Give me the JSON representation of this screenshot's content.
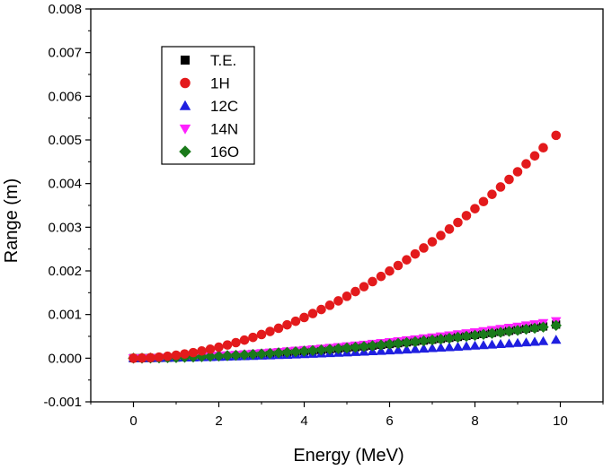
{
  "chart_data": {
    "type": "scatter",
    "title": "",
    "xlabel": "Energy (MeV)",
    "ylabel": "Range (m)",
    "xlim": [
      -1,
      11
    ],
    "ylim": [
      -0.001,
      0.008
    ],
    "x_ticks": [
      0,
      2,
      4,
      6,
      8,
      10
    ],
    "x_tick_labels": [
      "0",
      "2",
      "4",
      "6",
      "8",
      "10"
    ],
    "y_ticks": [
      -0.001,
      0.0,
      0.001,
      0.002,
      0.003,
      0.004,
      0.005,
      0.006,
      0.007,
      0.008
    ],
    "y_tick_labels": [
      "-0.001",
      "0.000",
      "0.001",
      "0.002",
      "0.003",
      "0.004",
      "0.005",
      "0.006",
      "0.007",
      "0.008"
    ],
    "grid": false,
    "legend_position": "top-left",
    "x": [
      0.0,
      0.2,
      0.4,
      0.6,
      0.8,
      1.0,
      1.2,
      1.4,
      1.6,
      1.8,
      2.0,
      2.2,
      2.4,
      2.6,
      2.8,
      3.0,
      3.2,
      3.4,
      3.6,
      3.8,
      4.0,
      4.2,
      4.4,
      4.6,
      4.8,
      5.0,
      5.2,
      5.4,
      5.6,
      5.8,
      6.0,
      6.2,
      6.4,
      6.6,
      6.8,
      7.0,
      7.2,
      7.4,
      7.6,
      7.8,
      8.0,
      8.2,
      8.4,
      8.6,
      8.8,
      9.0,
      9.2,
      9.4,
      9.6,
      9.9
    ],
    "series": [
      {
        "name": "T.E.",
        "marker": "square",
        "color": "#000000",
        "values": [
          0.0,
          1e-06,
          3e-06,
          6e-06,
          1e-05,
          1.5e-05,
          2e-05,
          2.6e-05,
          3.3e-05,
          4e-05,
          4.8e-05,
          5.7e-05,
          6.6e-05,
          7.6e-05,
          8.6e-05,
          9.7e-05,
          0.000109,
          0.000121,
          0.000134,
          0.000147,
          0.00016,
          0.000175,
          0.000189,
          0.000205,
          0.00022,
          0.000236,
          0.000253,
          0.00027,
          0.000288,
          0.000306,
          0.000324,
          0.000343,
          0.000363,
          0.000382,
          0.000403,
          0.000423,
          0.000444,
          0.000466,
          0.000487,
          0.00051,
          0.000532,
          0.000555,
          0.000579,
          0.000603,
          0.000627,
          0.000651,
          0.000676,
          0.000701,
          0.000727,
          0.00077
        ]
      },
      {
        "name": "1H",
        "marker": "circle",
        "color": "#e31a1c",
        "values": [
          0.0,
          3e-06,
          1.1e-05,
          2.5e-05,
          4.4e-05,
          6.8e-05,
          9.6e-05,
          0.000128,
          0.000165,
          0.000206,
          0.000252,
          0.000302,
          0.000356,
          0.000414,
          0.000476,
          0.000542,
          0.000612,
          0.000686,
          0.000764,
          0.000846,
          0.000932,
          0.001022,
          0.001115,
          0.001212,
          0.001313,
          0.001418,
          0.001526,
          0.001638,
          0.001754,
          0.001873,
          0.001996,
          0.002123,
          0.002253,
          0.002387,
          0.002525,
          0.002666,
          0.00281,
          0.002959,
          0.00311,
          0.003266,
          0.003425,
          0.003587,
          0.003753,
          0.003922,
          0.004095,
          0.004271,
          0.004451,
          0.004634,
          0.004821,
          0.005105
        ]
      },
      {
        "name": "12C",
        "marker": "triangle-up",
        "color": "#1f1fe0",
        "values": [
          0.0,
          1e-06,
          2e-06,
          4e-06,
          7e-06,
          1e-05,
          1.3e-05,
          1.6e-05,
          2e-05,
          2.4e-05,
          2.9e-05,
          3.4e-05,
          3.9e-05,
          4.4e-05,
          5e-05,
          5.6e-05,
          6.2e-05,
          6.9e-05,
          7.5e-05,
          8.2e-05,
          9e-05,
          9.7e-05,
          0.000105,
          0.000113,
          0.000121,
          0.00013,
          0.000139,
          0.000148,
          0.000157,
          0.000166,
          0.000176,
          0.000186,
          0.000196,
          0.000206,
          0.000217,
          0.000228,
          0.000239,
          0.00025,
          0.000261,
          0.000273,
          0.000285,
          0.000297,
          0.000309,
          0.000322,
          0.000334,
          0.000347,
          0.00036,
          0.000374,
          0.000387,
          0.00042
        ]
      },
      {
        "name": "14N",
        "marker": "triangle-down",
        "color": "#ff22ff",
        "values": [
          0.0,
          1e-06,
          4e-06,
          8e-06,
          1.3e-05,
          1.9e-05,
          2.6e-05,
          3.3e-05,
          4.1e-05,
          5e-05,
          6e-05,
          7e-05,
          8.1e-05,
          9.3e-05,
          0.000105,
          0.000118,
          0.000131,
          0.000145,
          0.000159,
          0.000174,
          0.00019,
          0.000206,
          0.000222,
          0.000239,
          0.000257,
          0.000275,
          0.000293,
          0.000312,
          0.000331,
          0.000351,
          0.000371,
          0.000392,
          0.000413,
          0.000435,
          0.000457,
          0.000479,
          0.000502,
          0.000525,
          0.000549,
          0.000573,
          0.000597,
          0.000622,
          0.000647,
          0.000673,
          0.000699,
          0.000725,
          0.000752,
          0.000779,
          0.000806,
          0.00085
        ]
      },
      {
        "name": "16O",
        "marker": "diamond",
        "color": "#1a7a1a",
        "values": [
          0.0,
          1e-06,
          3e-06,
          6e-06,
          1e-05,
          1.5e-05,
          2.1e-05,
          2.7e-05,
          3.4e-05,
          4.1e-05,
          4.9e-05,
          5.8e-05,
          6.7e-05,
          7.7e-05,
          8.7e-05,
          9.8e-05,
          0.00011,
          0.000122,
          0.000134,
          0.000147,
          0.000161,
          0.000175,
          0.000189,
          0.000204,
          0.000219,
          0.000235,
          0.000251,
          0.000268,
          0.000285,
          0.000303,
          0.000321,
          0.000339,
          0.000358,
          0.000377,
          0.000397,
          0.000417,
          0.000437,
          0.000458,
          0.000479,
          0.000501,
          0.000523,
          0.000545,
          0.000568,
          0.000591,
          0.000615,
          0.000638,
          0.000663,
          0.000687,
          0.000712,
          0.00075
        ]
      }
    ]
  }
}
